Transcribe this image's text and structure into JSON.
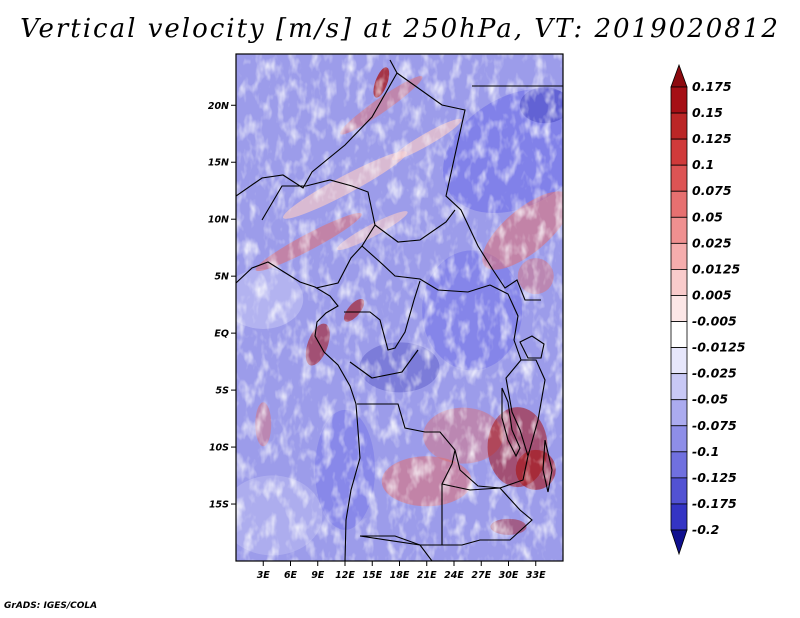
{
  "title": "Vertical velocity [m/s] at 250hPa, VT: 2019020812",
  "credit": "GrADS: IGES/COLA",
  "map": {
    "variable": "Vertical velocity",
    "units": "m/s",
    "level": "250hPa",
    "valid_time": "2019020812",
    "lon_range": [
      0,
      36
    ],
    "lat_range": [
      -20,
      24.5
    ],
    "lat_ticks": [
      {
        "value": 20,
        "label": "20N"
      },
      {
        "value": 15,
        "label": "15N"
      },
      {
        "value": 10,
        "label": "10N"
      },
      {
        "value": 5,
        "label": "5N"
      },
      {
        "value": 0,
        "label": "EQ"
      },
      {
        "value": -5,
        "label": "5S"
      },
      {
        "value": -10,
        "label": "10S"
      },
      {
        "value": -15,
        "label": "15S"
      }
    ],
    "lon_ticks": [
      {
        "value": 3,
        "label": "3E"
      },
      {
        "value": 6,
        "label": "6E"
      },
      {
        "value": 9,
        "label": "9E"
      },
      {
        "value": 12,
        "label": "12E"
      },
      {
        "value": 15,
        "label": "15E"
      },
      {
        "value": 18,
        "label": "18E"
      },
      {
        "value": 21,
        "label": "21E"
      },
      {
        "value": 24,
        "label": "24E"
      },
      {
        "value": 27,
        "label": "27E"
      },
      {
        "value": 30,
        "label": "30E"
      },
      {
        "value": 33,
        "label": "33E"
      }
    ],
    "colors": {
      "strong_negative": "#1a1aa6",
      "negative": "#6b6be8",
      "weak_negative": "#c9c9f5",
      "weak_positive": "#f4c8c8",
      "positive": "#e26f6f",
      "strong_positive": "#a81212"
    }
  },
  "colorbar": {
    "levels": [
      {
        "label": "0.175",
        "color": "#a50f15"
      },
      {
        "label": "0.15",
        "color": "#bb2626"
      },
      {
        "label": "0.125",
        "color": "#d03a3a"
      },
      {
        "label": "0.1",
        "color": "#dd5454"
      },
      {
        "label": "0.075",
        "color": "#e67070"
      },
      {
        "label": "0.05",
        "color": "#ef9090"
      },
      {
        "label": "0.025",
        "color": "#f5adad"
      },
      {
        "label": "0.0125",
        "color": "#f9cbcb"
      },
      {
        "label": "0.005",
        "color": "#fce6e6"
      },
      {
        "label": "-0.005",
        "color": "#ffffff"
      },
      {
        "label": "-0.0125",
        "color": "#e6e6fb"
      },
      {
        "label": "-0.025",
        "color": "#c8c8f5"
      },
      {
        "label": "-0.05",
        "color": "#ababef"
      },
      {
        "label": "-0.075",
        "color": "#8e8ee8"
      },
      {
        "label": "-0.1",
        "color": "#7070df"
      },
      {
        "label": "-0.125",
        "color": "#5252d3"
      },
      {
        "label": "-0.175",
        "color": "#3434c4"
      },
      {
        "label": "-0.2",
        "color": "#1818ad"
      }
    ],
    "top_cap_color": "#8c0a0f",
    "bottom_cap_color": "#10108f"
  }
}
